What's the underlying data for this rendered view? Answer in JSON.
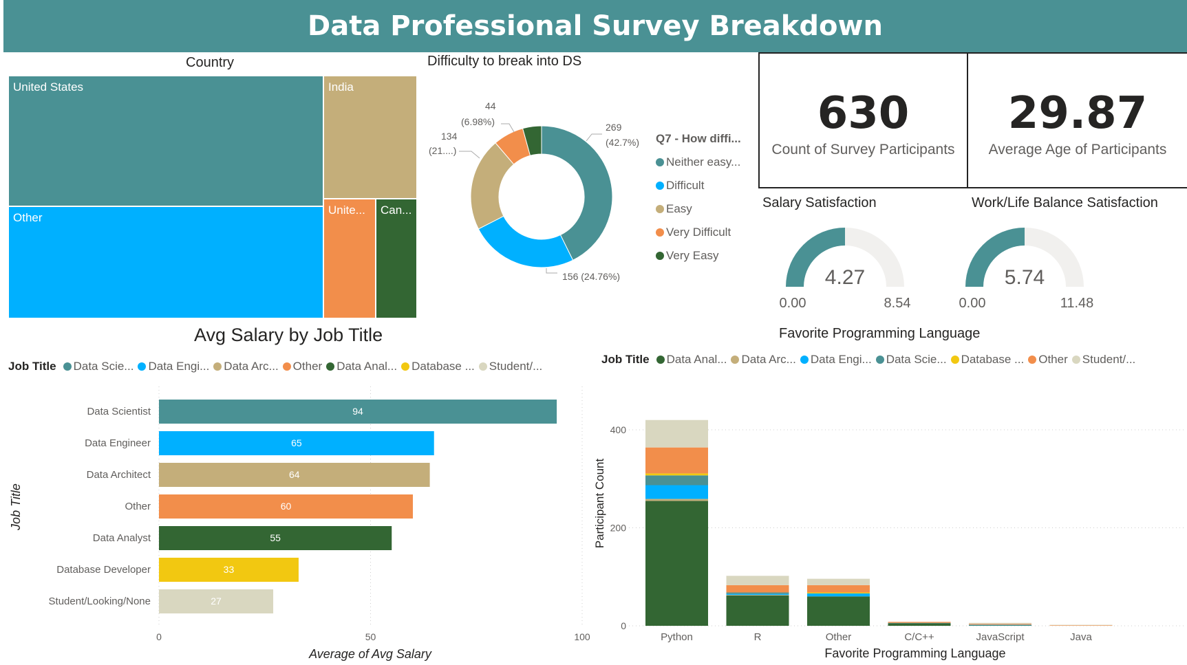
{
  "header": {
    "title": "Data Professional Survey Breakdown"
  },
  "country": {
    "title": "Country",
    "tiles": [
      {
        "label": "United States",
        "color": "#4a9194"
      },
      {
        "label": "India",
        "color": "#c4ae7a"
      },
      {
        "label": "Other",
        "color": "#00b0ff"
      },
      {
        "label": "Unite...",
        "color": "#f28e4b"
      },
      {
        "label": "Can...",
        "color": "#336633"
      }
    ]
  },
  "difficulty": {
    "title": "Difficulty to break into DS",
    "legend_title": "Q7 - How diffi...",
    "slices": [
      {
        "label": "Neither easy...",
        "value": 269,
        "data_label": "269",
        "pct_label": "(42.7%)",
        "color": "#4a9194"
      },
      {
        "label": "Difficult",
        "value": 156,
        "data_label": "156 (24.76%)",
        "pct_label": "",
        "color": "#00b0ff"
      },
      {
        "label": "Easy",
        "value": 134,
        "data_label": "134",
        "pct_label": "(21....)",
        "color": "#c4ae7a"
      },
      {
        "label": "Very Difficult",
        "value": 44,
        "data_label": "44",
        "pct_label": "(6.98%)",
        "color": "#f28e4b"
      },
      {
        "label": "Very Easy",
        "value": 27,
        "data_label": "",
        "pct_label": "",
        "color": "#336633"
      }
    ]
  },
  "kpis": [
    {
      "value": "630",
      "label": "Count of Survey Participants"
    },
    {
      "value": "29.87",
      "label": "Average Age of Participants"
    }
  ],
  "gauges": [
    {
      "title": "Salary Satisfaction",
      "value": 4.27,
      "value_label": "4.27",
      "min": "0.00",
      "max": "8.54",
      "max_value": 8.54
    },
    {
      "title": "Work/Life Balance Satisfaction",
      "value": 5.74,
      "value_label": "5.74",
      "min": "0.00",
      "max": "11.48",
      "max_value": 11.48
    }
  ],
  "chart_data": [
    {
      "type": "bar",
      "orientation": "horizontal",
      "title": "Avg Salary by Job Title",
      "legend_title": "Job Title",
      "legend": [
        "Data Scie...",
        "Data Engi...",
        "Data Arc...",
        "Other",
        "Data Anal...",
        "Database ...",
        "Student/..."
      ],
      "categories": [
        "Data Scientist",
        "Data Engineer",
        "Data Architect",
        "Other",
        "Data Analyst",
        "Database Developer",
        "Student/Looking/None"
      ],
      "values": [
        94,
        65,
        64,
        60,
        55,
        33,
        27
      ],
      "colors": [
        "#4a9194",
        "#00b0ff",
        "#c4ae7a",
        "#f28e4b",
        "#336633",
        "#f2c811",
        "#d9d7c0"
      ],
      "xlabel": "Average of Avg Salary",
      "ylabel": "Job Title",
      "xlim": [
        0,
        100
      ],
      "xticks": [
        "0",
        "50",
        "100"
      ],
      "grid": true,
      "legend_position": "top-left"
    },
    {
      "type": "bar",
      "orientation": "vertical",
      "stacked": true,
      "title": "Favorite Programming Language",
      "legend_title": "Job Title",
      "legend": [
        "Data Anal...",
        "Data Arc...",
        "Data Engi...",
        "Data Scie...",
        "Database ...",
        "Other",
        "Student/..."
      ],
      "colors": [
        "#336633",
        "#c4ae7a",
        "#00b0ff",
        "#4a9194",
        "#f2c811",
        "#f28e4b",
        "#d9d7c0"
      ],
      "categories": [
        "Python",
        "R",
        "Other",
        "C/C++",
        "JavaScript",
        "Java"
      ],
      "series": [
        {
          "name": "Data Analyst",
          "values": [
            255,
            62,
            60,
            5,
            1,
            0
          ]
        },
        {
          "name": "Data Architect",
          "values": [
            4,
            1,
            0,
            0,
            0,
            0
          ]
        },
        {
          "name": "Data Engineer",
          "values": [
            28,
            2,
            6,
            0,
            1,
            0
          ]
        },
        {
          "name": "Data Scientist",
          "values": [
            20,
            3,
            0,
            1,
            0,
            0
          ]
        },
        {
          "name": "Database Developer",
          "values": [
            4,
            0,
            2,
            0,
            0,
            0
          ]
        },
        {
          "name": "Other",
          "values": [
            53,
            15,
            15,
            2,
            2,
            1
          ]
        },
        {
          "name": "Student/Looking/None",
          "values": [
            56,
            19,
            13,
            0,
            2,
            1
          ]
        }
      ],
      "xlabel": "Favorite Programming Language",
      "ylabel": "Participant Count",
      "ylim": [
        0,
        420
      ],
      "yticks": [
        "0",
        "200",
        "400"
      ],
      "grid": true,
      "legend_position": "top-left"
    }
  ]
}
